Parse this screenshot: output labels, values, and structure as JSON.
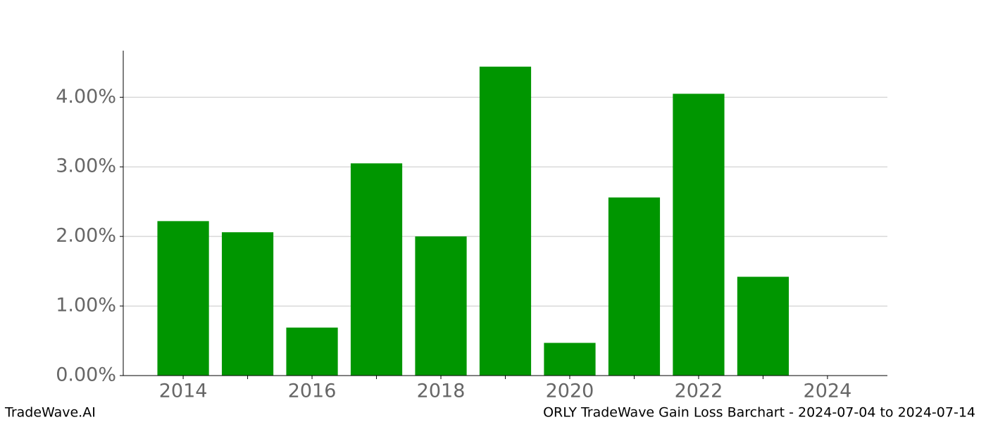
{
  "chart_data": {
    "type": "bar",
    "x": [
      2014,
      2015,
      2016,
      2017,
      2018,
      2019,
      2020,
      2021,
      2022,
      2023
    ],
    "values": [
      2.22,
      2.06,
      0.69,
      3.05,
      2.0,
      4.44,
      0.47,
      2.56,
      4.05,
      1.42
    ],
    "color": "#009600",
    "bar_width": 0.8,
    "xlim": [
      2013.07,
      2024.93
    ],
    "xticks": [
      2014,
      2016,
      2018,
      2020,
      2022,
      2024
    ],
    "xminorticks": [
      2015,
      2017,
      2019,
      2021,
      2023
    ],
    "ylim": [
      0,
      4.67
    ],
    "yticks": [
      {
        "value": 0,
        "label": "0.00%"
      },
      {
        "value": 1,
        "label": "1.00%"
      },
      {
        "value": 2,
        "label": "2.00%"
      },
      {
        "value": 3,
        "label": "3.00%"
      },
      {
        "value": 4,
        "label": "4.00%"
      }
    ],
    "grid": true
  },
  "footer": {
    "left": "TradeWave.AI",
    "right": "ORLY TradeWave Gain Loss Barchart - 2024-07-04 to 2024-07-14"
  }
}
